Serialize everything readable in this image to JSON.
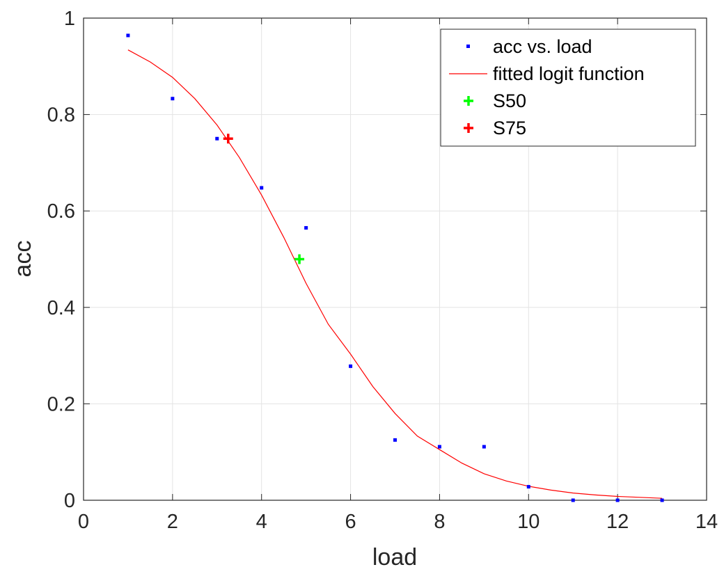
{
  "chart_data": {
    "type": "scatter",
    "title": "",
    "xlabel": "load",
    "ylabel": "acc",
    "xlim": [
      0,
      14
    ],
    "ylim": [
      0,
      1
    ],
    "xticks": [
      0,
      2,
      4,
      6,
      8,
      10,
      12,
      14
    ],
    "yticks": [
      0,
      0.2,
      0.4,
      0.6,
      0.8,
      1
    ],
    "xtick_labels": [
      "0",
      "2",
      "4",
      "6",
      "8",
      "10",
      "12",
      "14"
    ],
    "ytick_labels": [
      "0",
      "0.2",
      "0.4",
      "0.6",
      "0.8",
      "1"
    ],
    "grid": true,
    "legend_position": "top-right",
    "series": [
      {
        "name": "acc vs. load",
        "kind": "points",
        "color": "#0000ff",
        "x": [
          1,
          2,
          3,
          4,
          5,
          6,
          7,
          8,
          9,
          10,
          11,
          12,
          13
        ],
        "y": [
          0.964,
          0.833,
          0.75,
          0.648,
          0.565,
          0.278,
          0.125,
          0.111,
          0.111,
          0.028,
          0.0,
          0.0,
          0.0
        ]
      },
      {
        "name": "fitted logit function",
        "kind": "curve",
        "color": "#ff0000",
        "x": [
          1,
          1.5,
          2,
          2.5,
          3,
          3.5,
          4,
          4.5,
          5,
          5.5,
          6,
          6.5,
          7,
          7.5,
          8,
          8.5,
          9,
          9.5,
          10,
          10.5,
          11,
          11.5,
          12,
          12.5,
          13
        ],
        "y": [
          0.934,
          0.909,
          0.877,
          0.833,
          0.778,
          0.711,
          0.633,
          0.545,
          0.45,
          0.365,
          0.303,
          0.236,
          0.18,
          0.133,
          0.105,
          0.077,
          0.055,
          0.04,
          0.029,
          0.021,
          0.015,
          0.011,
          0.008,
          0.006,
          0.004
        ]
      },
      {
        "name": "S50",
        "kind": "marker",
        "color": "#00ff00",
        "x": [
          4.85
        ],
        "y": [
          0.5
        ]
      },
      {
        "name": "S75",
        "kind": "marker",
        "color": "#ff0000",
        "x": [
          3.25
        ],
        "y": [
          0.75
        ]
      }
    ]
  }
}
